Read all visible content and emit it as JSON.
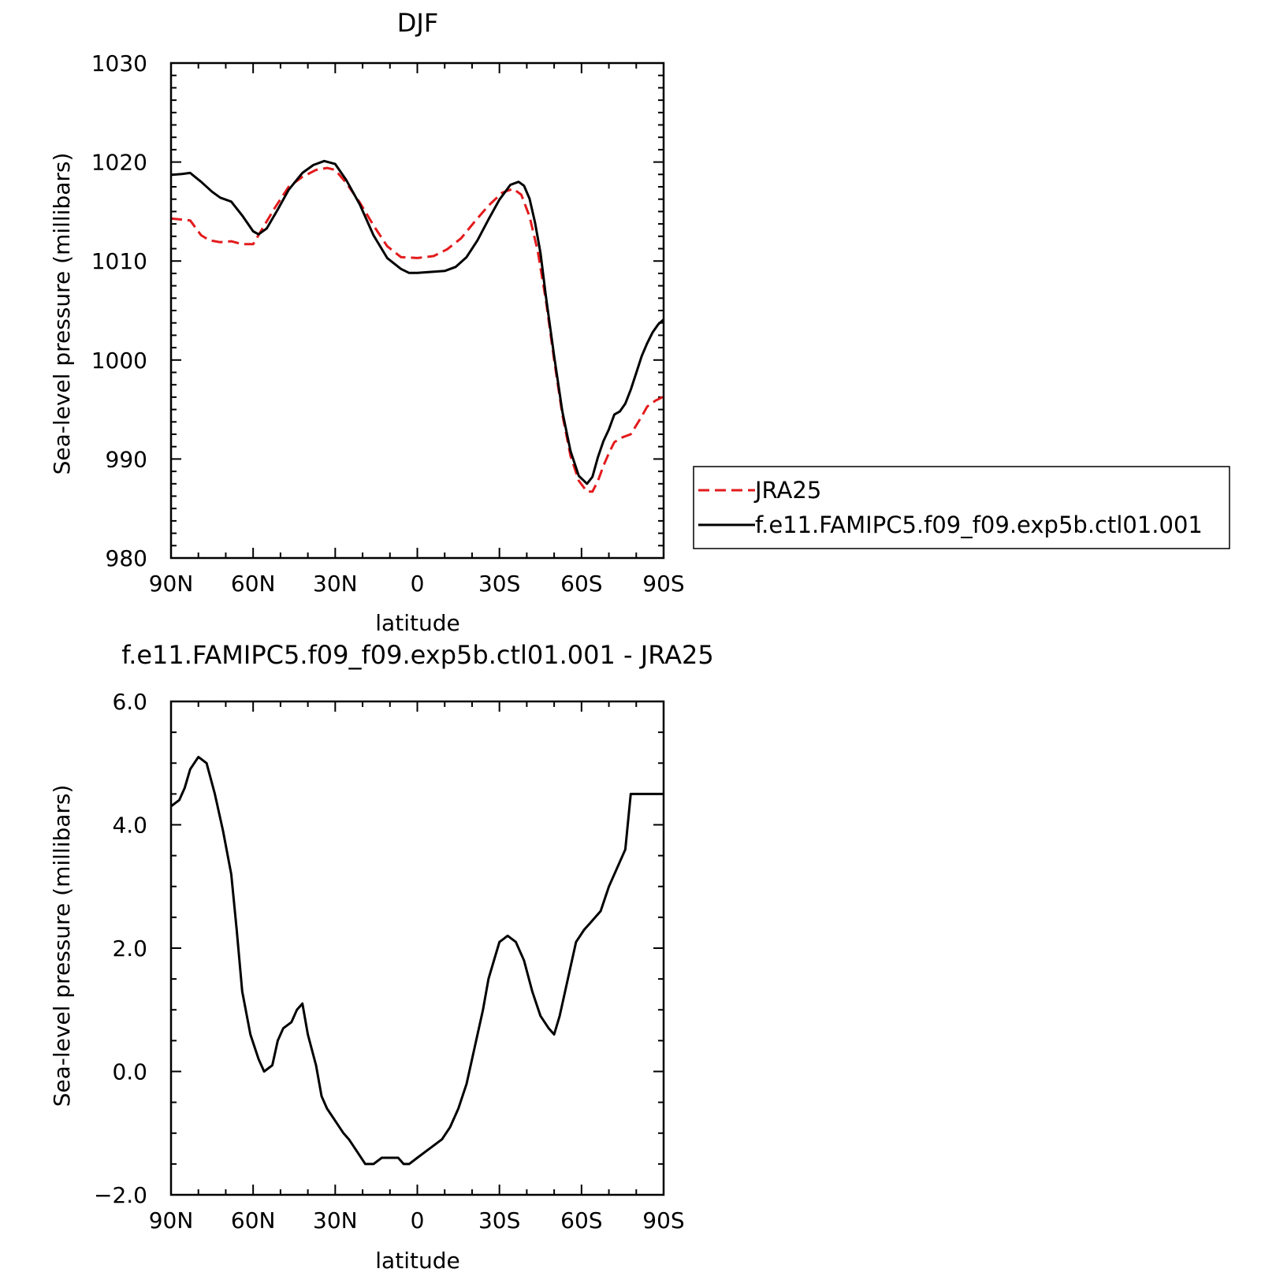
{
  "chart_data": [
    {
      "type": "line",
      "title": "DJF",
      "xlabel": "latitude",
      "ylabel": "Sea-level pressure (millibars)",
      "xlim": [
        -90,
        90
      ],
      "ylim": [
        980,
        1030
      ],
      "x_ticks": [
        -90,
        -60,
        -30,
        0,
        30,
        60,
        90
      ],
      "x_tick_labels": [
        "90N",
        "60N",
        "30N",
        "0",
        "30S",
        "60S",
        "90S"
      ],
      "y_ticks": [
        980,
        990,
        1000,
        1010,
        1020,
        1030
      ],
      "y_tick_labels": [
        "980",
        "990",
        "1000",
        "1010",
        "1020",
        "1030"
      ],
      "legend_position": "right",
      "series": [
        {
          "name": "JRA25",
          "color": "#e31a1c",
          "dash": "dashed",
          "x": [
            -90,
            -83,
            -79,
            -76,
            -72,
            -68,
            -64,
            -60,
            -57,
            -52,
            -47,
            -42,
            -37,
            -33,
            -30,
            -26,
            -21,
            -16,
            -11,
            -6,
            0,
            6,
            11,
            16,
            21,
            26,
            31,
            35,
            38,
            41,
            44,
            47,
            50,
            53,
            56,
            59,
            62,
            64,
            66,
            68,
            70,
            72,
            75,
            78,
            82,
            84,
            87,
            90
          ],
          "y": [
            1014.3,
            1014.1,
            1012.6,
            1012.1,
            1011.9,
            1012.0,
            1011.7,
            1011.7,
            1013.1,
            1015.4,
            1017.5,
            1018.5,
            1019.2,
            1019.4,
            1019.2,
            1017.9,
            1015.9,
            1013.6,
            1011.5,
            1010.4,
            1010.3,
            1010.5,
            1011.2,
            1012.3,
            1014.0,
            1015.6,
            1016.9,
            1017.3,
            1016.7,
            1014.5,
            1011.0,
            1006.0,
            1000.0,
            994.5,
            990.3,
            987.8,
            986.7,
            986.7,
            987.8,
            989.3,
            990.6,
            991.7,
            992.2,
            992.5,
            994.3,
            995.3,
            995.9,
            996.3
          ]
        },
        {
          "name": "f.e11.FAMIPC5.f09_f09.exp5b.ctl01.001",
          "color": "#000000",
          "dash": "solid",
          "x": [
            -90,
            -86,
            -83,
            -79,
            -75,
            -72,
            -68,
            -64,
            -60,
            -58,
            -55,
            -51,
            -47,
            -42,
            -38,
            -34,
            -30,
            -26,
            -21,
            -16,
            -11,
            -6,
            -3,
            0,
            5,
            10,
            14,
            18,
            22,
            26,
            30,
            34,
            37,
            39,
            41,
            43,
            45,
            47,
            50,
            53,
            56,
            59,
            62,
            64,
            66,
            68,
            70,
            72,
            74,
            76,
            78,
            80,
            82,
            84,
            86,
            88,
            90
          ],
          "y": [
            1018.7,
            1018.8,
            1018.9,
            1018.0,
            1017.0,
            1016.4,
            1016.0,
            1014.6,
            1013.0,
            1012.7,
            1013.3,
            1015.2,
            1017.2,
            1018.9,
            1019.7,
            1020.1,
            1019.8,
            1018.2,
            1015.7,
            1012.6,
            1010.3,
            1009.2,
            1008.8,
            1008.8,
            1008.9,
            1009.0,
            1009.4,
            1010.4,
            1012.1,
            1014.2,
            1016.2,
            1017.7,
            1018.0,
            1017.6,
            1016.3,
            1013.9,
            1010.8,
            1006.4,
            1000.4,
            994.8,
            990.8,
            988.3,
            987.5,
            988.2,
            990.2,
            991.8,
            993.0,
            994.5,
            994.8,
            995.6,
            997.0,
            998.7,
            1000.4,
            1001.7,
            1002.8,
            1003.6,
            1004.1
          ]
        }
      ]
    },
    {
      "type": "line",
      "title": "f.e11.FAMIPC5.f09_f09.exp5b.ctl01.001 - JRA25",
      "xlabel": "latitude",
      "ylabel": "Sea-level pressure (millibars)",
      "xlim": [
        -90,
        90
      ],
      "ylim": [
        -2.0,
        6.0
      ],
      "x_ticks": [
        -90,
        -60,
        -30,
        0,
        30,
        60,
        90
      ],
      "x_tick_labels": [
        "90N",
        "60N",
        "30N",
        "0",
        "30S",
        "60S",
        "90S"
      ],
      "y_ticks": [
        -2.0,
        0.0,
        2.0,
        4.0,
        6.0
      ],
      "y_tick_labels": [
        "−2.0",
        "0.0",
        "2.0",
        "4.0",
        "6.0"
      ],
      "series": [
        {
          "name": "",
          "color": "#000000",
          "dash": "solid",
          "x": [
            -90,
            -87,
            -85,
            -83,
            -80,
            -77,
            -74,
            -71,
            -68,
            -66,
            -64,
            -61,
            -58,
            -56,
            -53,
            -51,
            -49,
            -46,
            -44,
            -42,
            -40,
            -37,
            -35,
            -33,
            -30,
            -27,
            -25,
            -22,
            -19,
            -16,
            -13,
            -10,
            -7,
            -5,
            -3,
            0,
            3,
            6,
            9,
            12,
            15,
            18,
            21,
            24,
            26,
            28,
            30,
            33,
            36,
            39,
            42,
            45,
            48,
            50,
            52,
            55,
            58,
            61,
            63,
            65,
            67,
            70,
            73,
            76,
            78,
            81,
            83,
            86,
            88,
            90
          ],
          "y": [
            4.3,
            4.4,
            4.6,
            4.9,
            5.1,
            5.0,
            4.5,
            3.9,
            3.2,
            2.3,
            1.3,
            0.6,
            0.2,
            0.0,
            0.1,
            0.5,
            0.7,
            0.8,
            1.0,
            1.1,
            0.6,
            0.1,
            -0.4,
            -0.6,
            -0.8,
            -1.0,
            -1.1,
            -1.3,
            -1.5,
            -1.5,
            -1.4,
            -1.4,
            -1.4,
            -1.5,
            -1.5,
            -1.4,
            -1.3,
            -1.2,
            -1.1,
            -0.9,
            -0.6,
            -0.2,
            0.4,
            1.0,
            1.5,
            1.8,
            2.1,
            2.2,
            2.1,
            1.8,
            1.3,
            0.9,
            0.7,
            0.6,
            0.9,
            1.5,
            2.1,
            2.3,
            2.4,
            2.5,
            2.6,
            3.0,
            3.3,
            3.6,
            4.5,
            4.5,
            4.5,
            4.5,
            4.5,
            4.5
          ]
        }
      ]
    }
  ]
}
